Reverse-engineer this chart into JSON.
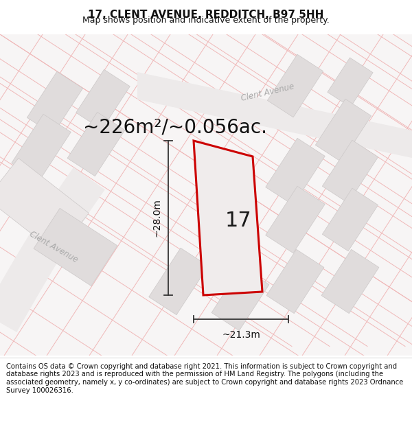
{
  "title": "17, CLENT AVENUE, REDDITCH, B97 5HH",
  "subtitle": "Map shows position and indicative extent of the property.",
  "area_text": "~226m²/~0.056ac.",
  "property_number": "17",
  "dim_width": "~21.3m",
  "dim_height": "~28.0m",
  "street_label_left": "Clent Avenue",
  "street_label_top": "Clent Avenue",
  "footer_text": "Contains OS data © Crown copyright and database right 2021. This information is subject to Crown copyright and database rights 2023 and is reproduced with the permission of HM Land Registry. The polygons (including the associated geometry, namely x, y co-ordinates) are subject to Crown copyright and database rights 2023 Ordnance Survey 100026316.",
  "map_bg": "#f7f5f5",
  "grid_line_color": "#f0b8b8",
  "block_color": "#e0dcdc",
  "block_edge_color": "#ccc8c8",
  "property_fill": "#f0ecec",
  "property_edge": "#cc0000",
  "road_color": "#e8e4e4",
  "title_fontsize": 11,
  "subtitle_fontsize": 9,
  "area_fontsize": 20,
  "number_fontsize": 22,
  "footer_fontsize": 7.2,
  "dim_fontsize": 10
}
